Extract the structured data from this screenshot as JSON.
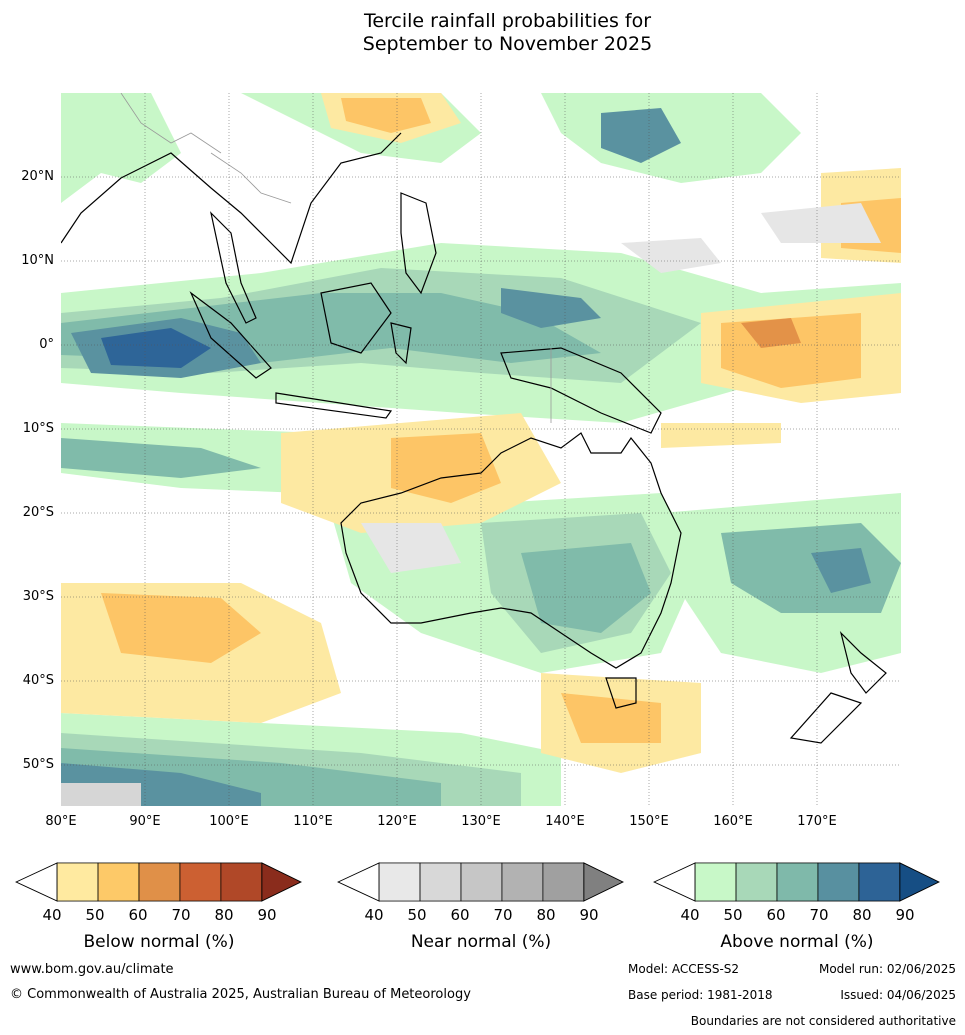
{
  "title": {
    "line1": "Tercile rainfall probabilities for",
    "line2": "September to November 2025"
  },
  "map": {
    "lat_labels": [
      "20°N",
      "10°N",
      "0°",
      "10°S",
      "20°S",
      "30°S",
      "40°S",
      "50°S"
    ],
    "lon_labels": [
      "80°E",
      "90°E",
      "100°E",
      "110°E",
      "120°E",
      "130°E",
      "140°E",
      "150°E",
      "160°E",
      "170°E"
    ],
    "colors": {
      "below_40": "#fde9a2",
      "below_50": "#fdc566",
      "below_60": "#e39248",
      "above_40": "#c8f7c8",
      "above_50": "#a8d8b8",
      "above_60": "#80bbaa",
      "above_70": "#5a92a0",
      "above_80": "#2e6598",
      "near_40": "#e6e6e6",
      "near_50": "#d6d6d6",
      "land_outline": "#000000",
      "border": "#999999",
      "grid": "#555555"
    }
  },
  "colorbars": [
    {
      "title": "Below normal (%)",
      "ticks": [
        "40",
        "50",
        "60",
        "70",
        "80",
        "90"
      ],
      "colors": [
        "#ffeaa0",
        "#fdc968",
        "#e09048",
        "#cc6032",
        "#b04828",
        "#8a2c1c"
      ]
    },
    {
      "title": "Near normal (%)",
      "ticks": [
        "40",
        "50",
        "60",
        "70",
        "80",
        "90"
      ],
      "colors": [
        "#e8e8e8",
        "#d8d8d8",
        "#c6c6c6",
        "#b2b2b2",
        "#a0a0a0",
        "#808080"
      ]
    },
    {
      "title": "Above normal (%)",
      "ticks": [
        "40",
        "50",
        "60",
        "70",
        "80",
        "90"
      ],
      "colors": [
        "#c8f8c8",
        "#a8d8b8",
        "#7fb9aa",
        "#5890a0",
        "#2d6396",
        "#164e84"
      ]
    }
  ],
  "footer": {
    "website": "www.bom.gov.au/climate",
    "copyright": "© Commonwealth of Australia 2025, Australian Bureau of Meteorology",
    "model": "Model: ACCESS-S2",
    "model_run": "Model run: 02/06/2025",
    "base_period": "Base period: 1981-2018",
    "issued": "Issued: 04/06/2025",
    "boundaries": "Boundaries are not considered authoritative"
  }
}
